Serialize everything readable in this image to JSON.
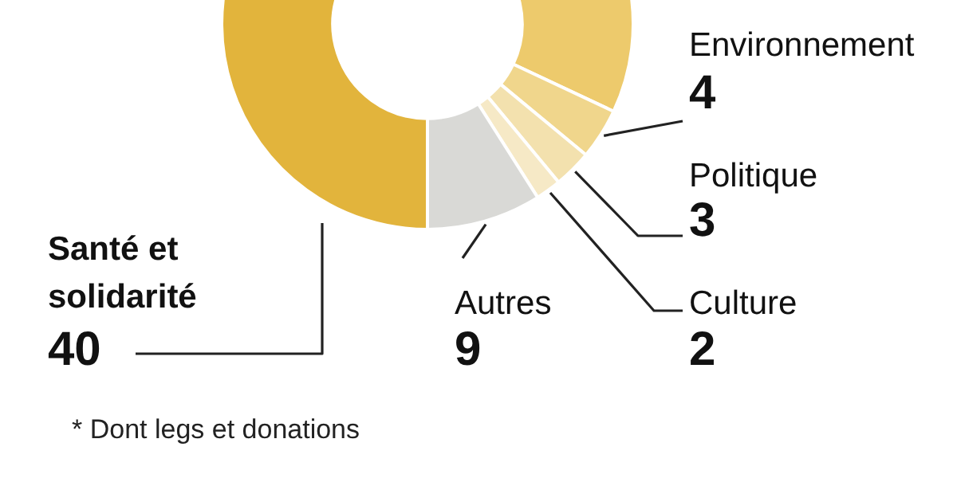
{
  "chart_data": {
    "type": "donut",
    "categories": [
      null,
      "Environnement",
      "Politique",
      "Culture",
      "Autres",
      "Santé et solidarité"
    ],
    "values": [
      42,
      4,
      3,
      2,
      9,
      40
    ],
    "colors": [
      "#edca6c",
      "#f0d68c",
      "#f3e1ae",
      "#f6e9c6",
      "#d9d9d6",
      "#e2b43c"
    ],
    "value_labels": [
      null,
      "4",
      "3",
      "2",
      "9",
      "40"
    ],
    "annotations": [
      "* Dont legs et donations"
    ]
  }
}
